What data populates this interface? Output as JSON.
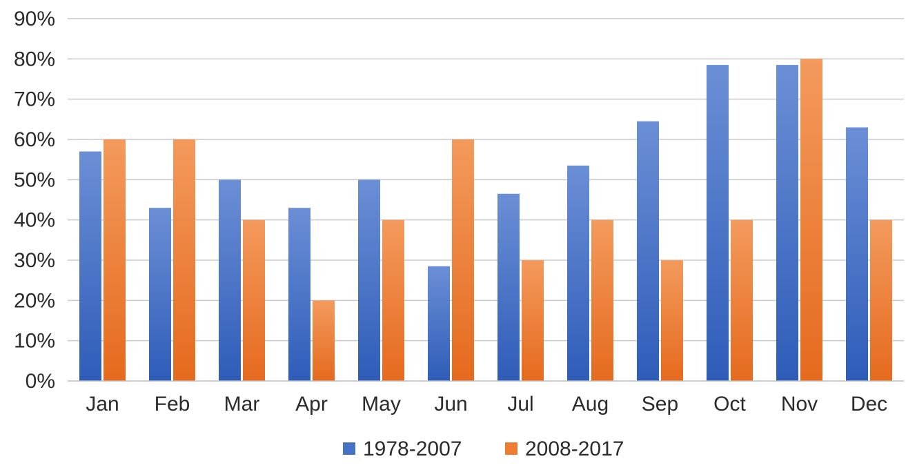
{
  "chart_data": {
    "type": "bar",
    "title": "",
    "xlabel": "",
    "ylabel": "",
    "categories": [
      "Jan",
      "Feb",
      "Mar",
      "Apr",
      "May",
      "Jun",
      "Jul",
      "Aug",
      "Sep",
      "Oct",
      "Nov",
      "Dec"
    ],
    "series": [
      {
        "name": "1978-2007",
        "color": "#4472c4",
        "values": [
          57,
          43,
          50,
          43,
          50,
          28.5,
          46.5,
          53.5,
          64.5,
          78.5,
          78.5,
          63
        ]
      },
      {
        "name": "2008-2017",
        "color": "#ed7d31",
        "values": [
          60,
          60,
          40,
          20,
          40,
          60,
          30,
          40,
          30,
          40,
          80,
          40
        ]
      }
    ],
    "ylim": [
      0,
      90
    ],
    "yticks": [
      0,
      10,
      20,
      30,
      40,
      50,
      60,
      70,
      80,
      90
    ],
    "ytick_labels": [
      "0%",
      "10%",
      "20%",
      "30%",
      "40%",
      "50%",
      "60%",
      "70%",
      "80%",
      "90%"
    ],
    "grid": true,
    "legend_position": "bottom-center"
  }
}
